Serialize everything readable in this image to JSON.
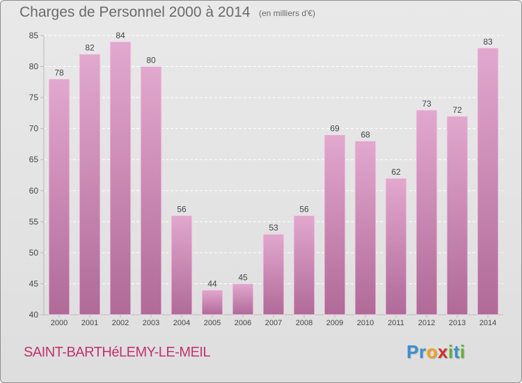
{
  "title": "Charges de Personnel 2000 à 2014",
  "subtitle": "(en milliers d'€)",
  "commune": "SAINT-BARTHéLEMY-LE-MEIL",
  "logo": {
    "letters": [
      "P",
      "r",
      "o",
      "x",
      "i",
      "t",
      "i"
    ],
    "colors": [
      "#3a8fd0",
      "#3a8fd0",
      "#f0a020",
      "#d03030",
      "#60b030",
      "#3a8fd0",
      "#60b030"
    ]
  },
  "colors": {
    "bar_top": "#e2a8ce",
    "bar_bottom": "#b06a98",
    "bar_edge": "#f3d6ea",
    "grid": "#ffffff",
    "axis": "#b8b8b8",
    "text": "#444444",
    "title": "#6a6a6a",
    "commune": "#c0346e"
  },
  "chart_data": {
    "type": "bar",
    "title": "Charges de Personnel 2000 à 2014",
    "subtitle": "(en milliers d'€)",
    "xlabel": "",
    "ylabel": "",
    "categories": [
      "2000",
      "2001",
      "2002",
      "2003",
      "2004",
      "2005",
      "2006",
      "2007",
      "2008",
      "2009",
      "2010",
      "2011",
      "2012",
      "2013",
      "2014"
    ],
    "values": [
      78,
      82,
      84,
      80,
      56,
      44,
      45,
      53,
      56,
      69,
      68,
      62,
      73,
      72,
      83
    ],
    "ylim": [
      40,
      85
    ],
    "yticks": [
      40,
      45,
      50,
      55,
      60,
      65,
      70,
      75,
      80,
      85
    ],
    "grid": "horizontal dashed",
    "legend": "none",
    "data_labels": true
  }
}
